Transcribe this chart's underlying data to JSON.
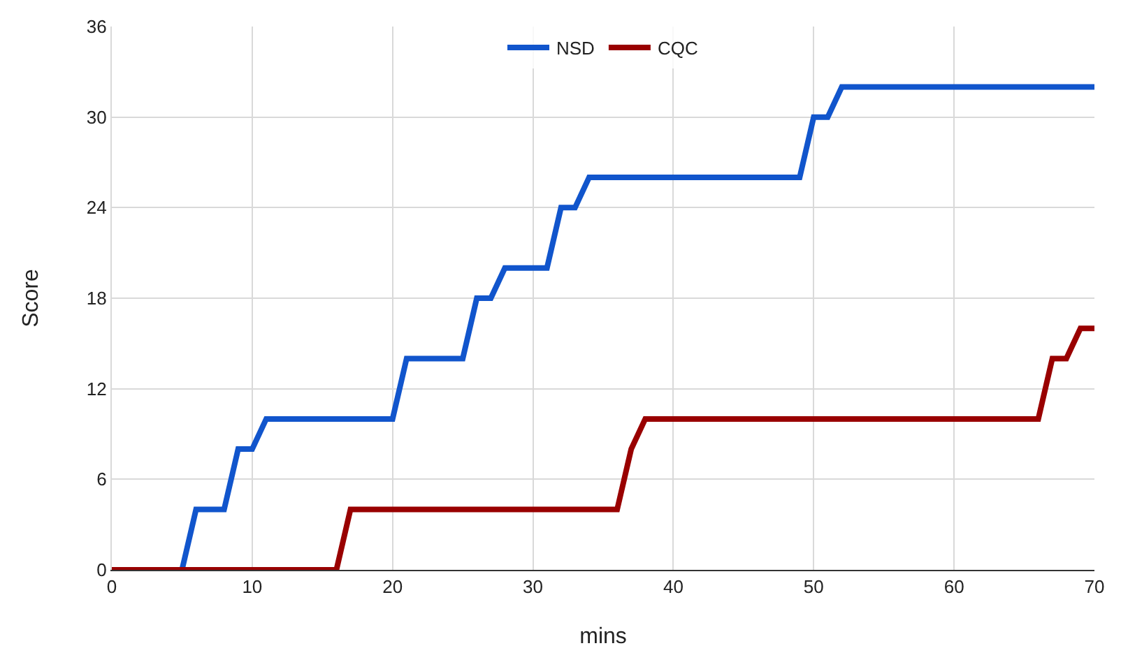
{
  "chart_data": {
    "type": "line",
    "xlabel": "mins",
    "ylabel": "Score",
    "xlim": [
      0,
      70
    ],
    "xticks": [
      0,
      10,
      20,
      30,
      40,
      50,
      60,
      70
    ],
    "ylim": [
      0,
      36
    ],
    "yticks": [
      0,
      6,
      12,
      18,
      24,
      30,
      36
    ],
    "grid": true,
    "legend": "top",
    "marker": "none",
    "line_style": "solid",
    "series": [
      {
        "name": "NSD",
        "color": "#1155cc",
        "x": [
          0,
          5,
          6,
          8,
          9,
          10,
          11,
          20,
          21,
          25,
          26,
          27,
          28,
          31,
          32,
          33,
          34,
          49,
          50,
          51,
          52,
          70
        ],
        "values": [
          0,
          0,
          4,
          4,
          8,
          8,
          10,
          10,
          14,
          14,
          18,
          18,
          20,
          20,
          24,
          24,
          26,
          26,
          30,
          30,
          32,
          32
        ]
      },
      {
        "name": "CQC",
        "color": "#990000",
        "x": [
          0,
          16,
          17,
          36,
          37,
          38,
          66,
          67,
          68,
          69,
          70
        ],
        "values": [
          0,
          0,
          4,
          4,
          8,
          10,
          10,
          14,
          14,
          16,
          16
        ]
      }
    ]
  }
}
